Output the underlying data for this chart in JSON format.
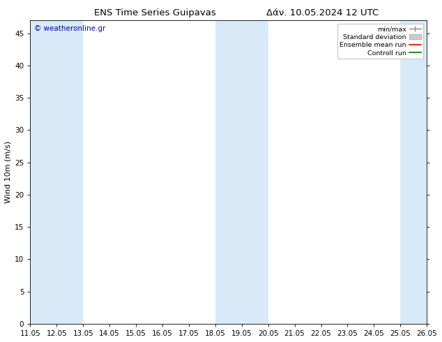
{
  "title_left": "ENS Time Series Guipavas",
  "title_right": "Δάν. 10.05.2024 12 UTC",
  "ylabel": "Wind 10m (m/s)",
  "watermark": "© weatheronline.gr",
  "watermark_color": "#0000cc",
  "xlim": [
    11.05,
    26.05
  ],
  "ylim": [
    0,
    47
  ],
  "yticks": [
    0,
    5,
    10,
    15,
    20,
    25,
    30,
    35,
    40,
    45
  ],
  "xtick_labels": [
    "11.05",
    "12.05",
    "13.05",
    "14.05",
    "15.05",
    "16.05",
    "17.05",
    "18.05",
    "19.05",
    "20.05",
    "21.05",
    "22.05",
    "23.05",
    "24.05",
    "25.05",
    "26.05"
  ],
  "xtick_values": [
    11.05,
    12.05,
    13.05,
    14.05,
    15.05,
    16.05,
    17.05,
    18.05,
    19.05,
    20.05,
    21.05,
    22.05,
    23.05,
    24.05,
    25.05,
    26.05
  ],
  "shaded_bands": [
    [
      11.05,
      12.05
    ],
    [
      12.05,
      13.05
    ],
    [
      18.05,
      19.05
    ],
    [
      19.05,
      20.05
    ],
    [
      25.05,
      26.05
    ]
  ],
  "shaded_color": "#d8eaf8",
  "bg_color": "#ffffff",
  "plot_bg_color": "#ffffff",
  "legend_labels": [
    "min/max",
    "Standard deviation",
    "Ensemble mean run",
    "Controll run"
  ],
  "legend_colors_line": [
    "#888888",
    "#bbbbbb",
    "#ff0000",
    "#007700"
  ],
  "font_color": "#000000",
  "title_fontsize": 9.5,
  "axis_fontsize": 7.5,
  "ylabel_fontsize": 8
}
